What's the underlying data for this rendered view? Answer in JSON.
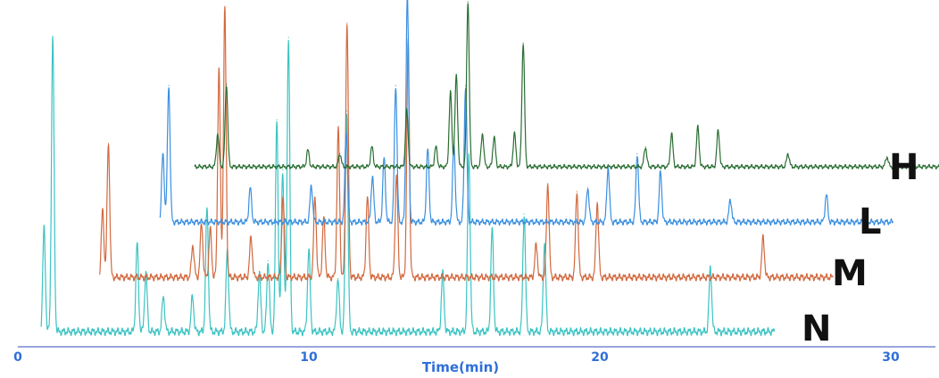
{
  "chart_data": {
    "type": "line",
    "title": "",
    "xlabel": "Time(min)",
    "ylabel": "",
    "xlim": [
      0,
      30
    ],
    "xticks": [
      0,
      10,
      20,
      30
    ],
    "grid": false,
    "offset_stacked": true,
    "baseline_color": "#b9c2e8",
    "series": [
      {
        "name": "N",
        "color": "#3cc3c3",
        "x_start": 0.8,
        "x_end": 26.0,
        "peaks": [
          {
            "x": 0.9,
            "h": 0.35
          },
          {
            "x": 1.2,
            "h": 1.0
          },
          {
            "x": 4.1,
            "h": 0.3
          },
          {
            "x": 4.4,
            "h": 0.2
          },
          {
            "x": 5.0,
            "h": 0.12
          },
          {
            "x": 6.0,
            "h": 0.12
          },
          {
            "x": 6.5,
            "h": 0.42
          },
          {
            "x": 7.2,
            "h": 0.28
          },
          {
            "x": 8.3,
            "h": 0.2
          },
          {
            "x": 8.6,
            "h": 0.24
          },
          {
            "x": 8.9,
            "h": 0.72
          },
          {
            "x": 9.1,
            "h": 0.55
          },
          {
            "x": 9.3,
            "h": 1.0
          },
          {
            "x": 10.0,
            "h": 0.28
          },
          {
            "x": 11.0,
            "h": 0.18
          },
          {
            "x": 11.3,
            "h": 0.75
          },
          {
            "x": 14.6,
            "h": 0.2
          },
          {
            "x": 15.5,
            "h": 0.6
          },
          {
            "x": 16.3,
            "h": 0.35
          },
          {
            "x": 17.4,
            "h": 0.4
          },
          {
            "x": 18.1,
            "h": 0.3
          },
          {
            "x": 23.8,
            "h": 0.22
          }
        ]
      },
      {
        "name": "M",
        "color": "#d2693f",
        "x_start": 1.8,
        "x_end": 27.0,
        "peaks": [
          {
            "x": 1.9,
            "h": 0.25
          },
          {
            "x": 2.1,
            "h": 0.5
          },
          {
            "x": 5.0,
            "h": 0.12
          },
          {
            "x": 5.3,
            "h": 0.2
          },
          {
            "x": 5.6,
            "h": 0.18
          },
          {
            "x": 5.9,
            "h": 0.78
          },
          {
            "x": 6.1,
            "h": 1.0
          },
          {
            "x": 7.0,
            "h": 0.15
          },
          {
            "x": 8.1,
            "h": 0.3
          },
          {
            "x": 9.2,
            "h": 0.3
          },
          {
            "x": 9.5,
            "h": 0.22
          },
          {
            "x": 10.0,
            "h": 0.55
          },
          {
            "x": 10.3,
            "h": 0.95
          },
          {
            "x": 11.0,
            "h": 0.3
          },
          {
            "x": 12.0,
            "h": 0.38
          },
          {
            "x": 12.4,
            "h": 0.88
          },
          {
            "x": 16.8,
            "h": 0.12
          },
          {
            "x": 17.2,
            "h": 0.35
          },
          {
            "x": 18.2,
            "h": 0.32
          },
          {
            "x": 18.9,
            "h": 0.28
          },
          {
            "x": 24.6,
            "h": 0.15
          }
        ]
      },
      {
        "name": "L",
        "color": "#3a8fe0",
        "x_start": 2.8,
        "x_end": 28.0,
        "peaks": [
          {
            "x": 2.9,
            "h": 0.3
          },
          {
            "x": 3.1,
            "h": 0.6
          },
          {
            "x": 5.9,
            "h": 0.15
          },
          {
            "x": 8.0,
            "h": 0.16
          },
          {
            "x": 9.2,
            "h": 0.4
          },
          {
            "x": 10.1,
            "h": 0.2
          },
          {
            "x": 10.5,
            "h": 0.28
          },
          {
            "x": 10.9,
            "h": 0.6
          },
          {
            "x": 11.3,
            "h": 1.0
          },
          {
            "x": 12.0,
            "h": 0.32
          },
          {
            "x": 12.9,
            "h": 0.34
          },
          {
            "x": 13.3,
            "h": 0.6
          },
          {
            "x": 17.5,
            "h": 0.15
          },
          {
            "x": 18.2,
            "h": 0.24
          },
          {
            "x": 19.2,
            "h": 0.3
          },
          {
            "x": 20.0,
            "h": 0.22
          },
          {
            "x": 22.4,
            "h": 0.1
          },
          {
            "x": 25.7,
            "h": 0.12
          }
        ]
      },
      {
        "name": "H",
        "color": "#2a6e33",
        "x_start": 3.0,
        "x_end": 29.0,
        "peaks": [
          {
            "x": 3.8,
            "h": 0.2
          },
          {
            "x": 4.1,
            "h": 0.5
          },
          {
            "x": 6.9,
            "h": 0.1
          },
          {
            "x": 8.0,
            "h": 0.08
          },
          {
            "x": 9.1,
            "h": 0.12
          },
          {
            "x": 10.3,
            "h": 0.34
          },
          {
            "x": 11.3,
            "h": 0.12
          },
          {
            "x": 11.8,
            "h": 0.45
          },
          {
            "x": 12.0,
            "h": 0.55
          },
          {
            "x": 12.4,
            "h": 1.0
          },
          {
            "x": 12.9,
            "h": 0.2
          },
          {
            "x": 13.3,
            "h": 0.18
          },
          {
            "x": 14.0,
            "h": 0.2
          },
          {
            "x": 14.3,
            "h": 0.75
          },
          {
            "x": 18.5,
            "h": 0.12
          },
          {
            "x": 19.4,
            "h": 0.2
          },
          {
            "x": 20.3,
            "h": 0.24
          },
          {
            "x": 21.0,
            "h": 0.22
          },
          {
            "x": 23.4,
            "h": 0.08
          },
          {
            "x": 26.8,
            "h": 0.06
          }
        ]
      }
    ]
  }
}
